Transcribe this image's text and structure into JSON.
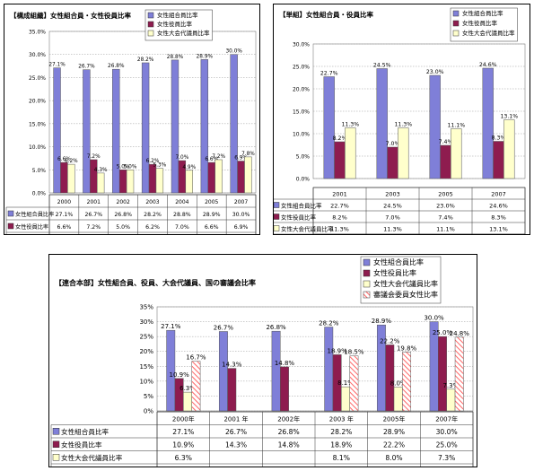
{
  "chart_data": [
    {
      "type": "bar",
      "title": "【構成組織】女性組合員・女性役員比率",
      "categories": [
        "2000",
        "2001",
        "2002",
        "2003",
        "2004",
        "2005",
        "2007"
      ],
      "ylim": [
        0,
        35
      ],
      "yticks": [
        "0.0%",
        "5.0%",
        "10.0%",
        "15.0%",
        "20.0%",
        "25.0%",
        "30.0%",
        "35.0%"
      ],
      "grid": true,
      "legend_position": "top-right",
      "series": [
        {
          "name": "女性組合員比率",
          "color": "#7f7fd8",
          "pattern": "solid",
          "values": [
            27.1,
            26.7,
            26.8,
            28.2,
            28.8,
            28.9,
            30.0
          ],
          "labels": [
            "27.1%",
            "26.7%",
            "26.8%",
            "28.2%",
            "28.8%",
            "28.9%",
            "30.0%"
          ]
        },
        {
          "name": "女性役員比率",
          "color": "#8e1c4f",
          "pattern": "solid",
          "values": [
            6.6,
            7.2,
            5.0,
            6.2,
            7.0,
            6.6,
            6.9
          ],
          "labels": [
            "6.6%",
            "7.2%",
            "5.0%",
            "6.2%",
            "7.0%",
            "6.6%",
            "6.9%"
          ]
        },
        {
          "name": "女性大会代議員比率",
          "color": "#ffffcc",
          "pattern": "solid",
          "values": [
            6.2,
            4.3,
            5.0,
            5.3,
            4.9,
            7.2,
            7.8
          ],
          "labels": [
            "6.2%",
            "4.3%",
            "5.0%",
            "5.3%",
            "4.9%",
            "7.2%",
            "7.8%"
          ]
        }
      ]
    },
    {
      "type": "bar",
      "title": "【単組】女性組合員・役員比率",
      "categories": [
        "2001",
        "2003",
        "2005",
        "2007"
      ],
      "ylim": [
        0,
        30
      ],
      "yticks": [
        "0.0%",
        "5.0%",
        "10.0%",
        "15.0%",
        "20.0%",
        "25.0%",
        "30.0%"
      ],
      "grid": true,
      "legend_position": "top-right",
      "series": [
        {
          "name": "女性組合員比率",
          "color": "#7f7fd8",
          "pattern": "solid",
          "values": [
            22.7,
            24.5,
            23.0,
            24.6
          ],
          "labels": [
            "22.7%",
            "24.5%",
            "23.0%",
            "24.6%"
          ]
        },
        {
          "name": "女性役員比率",
          "color": "#8e1c4f",
          "pattern": "solid",
          "values": [
            8.2,
            7.0,
            7.4,
            8.3
          ],
          "labels": [
            "8.2%",
            "7.0%",
            "7.4%",
            "8.3%"
          ]
        },
        {
          "name": "女性大会代議員比率",
          "color": "#ffffcc",
          "pattern": "solid",
          "values": [
            11.3,
            11.3,
            11.1,
            13.1
          ],
          "labels": [
            "11.3%",
            "11.3%",
            "11.1%",
            "13.1%"
          ]
        }
      ]
    },
    {
      "type": "bar",
      "title": "【連合本部】女性組合員、役員、大会代議員、国の審議会比率",
      "categories": [
        "2000年",
        "2001 年",
        "2002年",
        "2003 年",
        "2005年",
        "2007年"
      ],
      "ylim": [
        0,
        35
      ],
      "yticks": [
        "0%",
        "5%",
        "10%",
        "15%",
        "20%",
        "25%",
        "30%",
        "35%"
      ],
      "grid": true,
      "legend_position": "top-right",
      "series": [
        {
          "name": "女性組合員比率",
          "color": "#7f7fd8",
          "pattern": "solid",
          "values": [
            27.1,
            26.7,
            26.8,
            28.2,
            28.9,
            30.0
          ],
          "labels": [
            "27.1%",
            "26.7%",
            "26.8%",
            "28.2%",
            "28.9%",
            "30.0%"
          ]
        },
        {
          "name": "女性役員比率",
          "color": "#8e1c4f",
          "pattern": "solid",
          "values": [
            10.9,
            14.3,
            14.8,
            18.9,
            22.2,
            25.0
          ],
          "labels": [
            "10.9%",
            "14.3%",
            "14.8%",
            "18.9%",
            "22.2%",
            "25.0%"
          ]
        },
        {
          "name": "女性大会代議員比率",
          "color": "#ffffcc",
          "pattern": "solid",
          "values": [
            6.3,
            null,
            null,
            8.1,
            8.0,
            7.3
          ],
          "labels": [
            "6.3%",
            "",
            "",
            "8.1%",
            "8.0%",
            "7.3%"
          ]
        },
        {
          "name": "審議会委員女性比率",
          "color": "#ff9999",
          "pattern": "hatch",
          "values": [
            16.7,
            null,
            null,
            18.5,
            19.8,
            24.8
          ],
          "labels": [
            "16.7%",
            "",
            "",
            "18.5%",
            "19.8%",
            "24.8%"
          ]
        }
      ]
    }
  ]
}
